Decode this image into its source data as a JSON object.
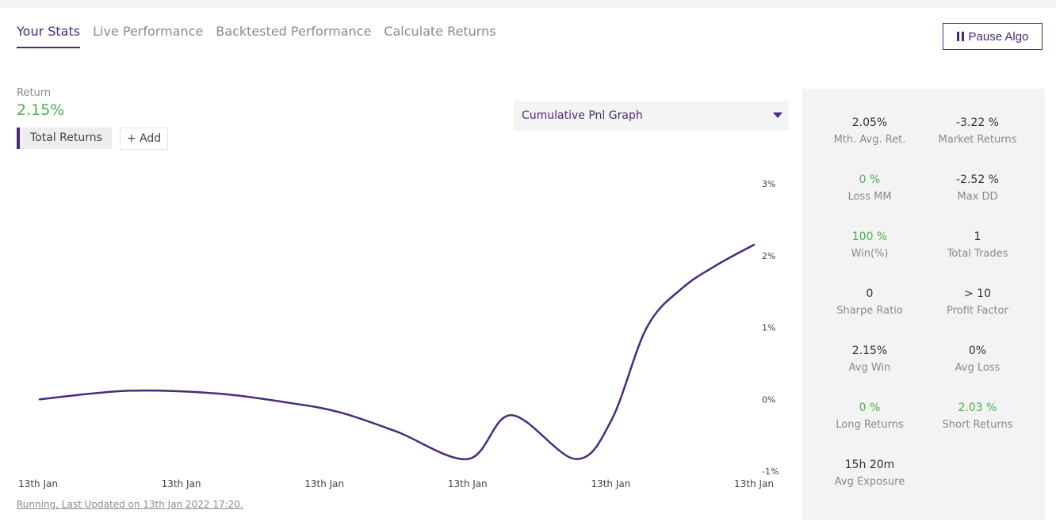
{
  "tabs": [
    {
      "label": "Your Stats",
      "active": true
    },
    {
      "label": "Live Performance",
      "active": false
    },
    {
      "label": "Backtested Performance",
      "active": false
    },
    {
      "label": "Calculate Returns",
      "active": false
    }
  ],
  "pause_button": {
    "label": "Pause Algo",
    "icon": "pause-icon"
  },
  "summary": {
    "return_label": "Return",
    "return_value": "2.15%"
  },
  "series_chip": {
    "label": "Total Returns"
  },
  "add_button": {
    "label": "+ Add"
  },
  "graph_select": {
    "value": "Cumulative Pnl Graph"
  },
  "chart_data": {
    "type": "line",
    "title": "",
    "x_tick_labels": [
      "13th Jan",
      "13th Jan",
      "13th Jan",
      "13th Jan",
      "13th Jan",
      "13th Jan"
    ],
    "y_tick_labels": [
      "3%",
      "2%",
      "1%",
      "0%",
      "-1%"
    ],
    "y_ticks": [
      3,
      2,
      1,
      0,
      -1
    ],
    "ylim": [
      -1,
      3
    ],
    "x_range": [
      0,
      1
    ],
    "grid": false,
    "series": [
      {
        "color": "#4b2a7b",
        "x": [
          0,
          0.125,
          0.25,
          0.35,
          0.42,
          0.5,
          0.6,
          0.66,
          0.75,
          0.8,
          0.85,
          0.9,
          0.95,
          1.0
        ],
        "values": [
          0.0,
          0.12,
          0.08,
          -0.05,
          -0.18,
          -0.45,
          -0.83,
          -0.22,
          -0.83,
          -0.3,
          1.0,
          1.55,
          1.88,
          2.15
        ]
      }
    ]
  },
  "footer": {
    "text": "Running, Last Updated on 13th Jan 2022 17:20."
  },
  "stats": [
    {
      "value": "2.05%",
      "label": "Mth. Avg. Ret.",
      "green": false
    },
    {
      "value": "-3.22 %",
      "label": "Market Returns",
      "green": false
    },
    {
      "value": "0 %",
      "label": "Loss MM",
      "green": true
    },
    {
      "value": "-2.52 %",
      "label": "Max DD",
      "green": false
    },
    {
      "value": "100 %",
      "label": "Win(%)",
      "green": true
    },
    {
      "value": "1",
      "label": "Total Trades",
      "green": false
    },
    {
      "value": "0",
      "label": "Sharpe Ratio",
      "green": false
    },
    {
      "value": "> 10",
      "label": "Profit Factor",
      "green": false
    },
    {
      "value": "2.15%",
      "label": "Avg Win",
      "green": false
    },
    {
      "value": "0%",
      "label": "Avg Loss",
      "green": false
    },
    {
      "value": "0 %",
      "label": "Long Returns",
      "green": true
    },
    {
      "value": "2.03 %",
      "label": "Short Returns",
      "green": true
    },
    {
      "value": "15h 20m",
      "label": "Avg Exposure",
      "green": false
    }
  ],
  "colors": {
    "accent": "#4b2a7b",
    "positive": "#4caf50",
    "panel": "#f3f3f3"
  }
}
